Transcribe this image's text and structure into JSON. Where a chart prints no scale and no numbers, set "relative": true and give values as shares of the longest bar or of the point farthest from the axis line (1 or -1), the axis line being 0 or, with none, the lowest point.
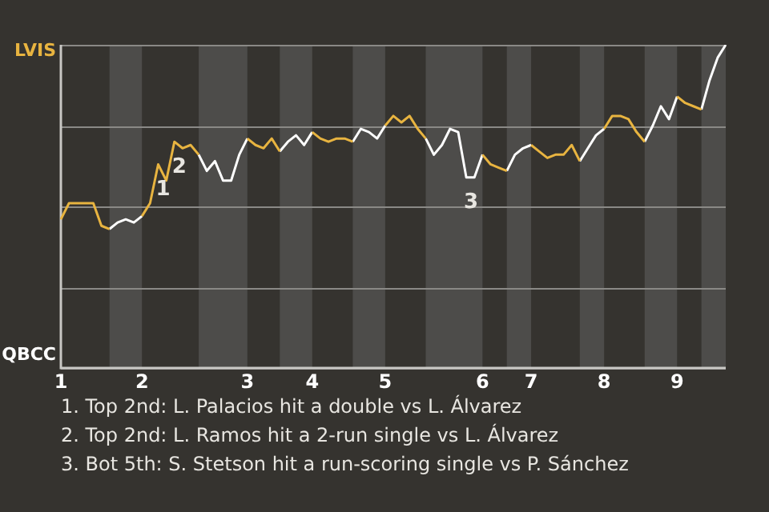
{
  "chart_data": {
    "type": "line",
    "relative": true,
    "categories": [
      "1",
      null,
      null,
      null,
      null,
      null,
      null,
      null,
      null,
      null,
      "2",
      null,
      null,
      null,
      null,
      null,
      null,
      null,
      null,
      null,
      null,
      null,
      null,
      "3",
      null,
      null,
      null,
      null,
      null,
      null,
      null,
      "4",
      null,
      null,
      null,
      null,
      null,
      null,
      null,
      null,
      "5",
      null,
      null,
      null,
      null,
      null,
      null,
      null,
      null,
      null,
      null,
      null,
      "6",
      null,
      null,
      null,
      null,
      null,
      "7",
      null,
      null,
      null,
      null,
      null,
      null,
      null,
      null,
      "8",
      null,
      null,
      null,
      null,
      null,
      null,
      null,
      null,
      "9",
      null,
      null,
      null,
      null,
      null,
      null
    ],
    "grid": "y",
    "legend": false,
    "marker": "none",
    "line_style": "solid",
    "series": [
      {
        "color": "#e8b440",
        "values": [
          0.46,
          0.51,
          0.51,
          0.51,
          0.51,
          0.44,
          0.43,
          null,
          null,
          null,
          0.47,
          0.51,
          0.63,
          0.58,
          0.7,
          0.68,
          0.69,
          0.66,
          null,
          null,
          null,
          null,
          null,
          0.71,
          0.69,
          0.68,
          0.71,
          0.67,
          null,
          null,
          null,
          0.73,
          0.71,
          0.7,
          0.71,
          0.71,
          0.7,
          null,
          null,
          null,
          0.75,
          0.78,
          0.76,
          0.78,
          0.74,
          0.71,
          null,
          null,
          null,
          null,
          null,
          null,
          0.66,
          0.63,
          0.62,
          0.61,
          null,
          null,
          0.69,
          0.67,
          0.65,
          0.66,
          0.66,
          0.69,
          0.64,
          null,
          null,
          0.74,
          0.78,
          0.78,
          0.77,
          0.73,
          0.7,
          null,
          null,
          null,
          0.84,
          0.82,
          0.81,
          0.8,
          null,
          null,
          null
        ]
      },
      {
        "color": "#ffffff",
        "values": [
          null,
          null,
          null,
          null,
          null,
          null,
          0.43,
          0.45,
          0.46,
          0.45,
          0.47,
          null,
          null,
          null,
          null,
          null,
          null,
          0.66,
          0.61,
          0.64,
          0.58,
          0.58,
          0.66,
          0.71,
          null,
          null,
          null,
          0.67,
          0.7,
          0.72,
          0.69,
          0.73,
          null,
          null,
          null,
          null,
          0.7,
          0.74,
          0.73,
          0.71,
          0.75,
          null,
          null,
          null,
          null,
          0.71,
          0.66,
          0.69,
          0.74,
          0.73,
          0.59,
          0.59,
          0.66,
          null,
          null,
          0.61,
          0.66,
          0.68,
          0.69,
          null,
          null,
          null,
          null,
          null,
          0.64,
          0.68,
          0.72,
          0.74,
          null,
          null,
          null,
          null,
          0.7,
          0.75,
          0.81,
          0.77,
          0.84,
          null,
          null,
          0.8,
          0.89,
          0.96,
          1.0
        ]
      }
    ],
    "annotations": [
      "LVIS",
      "QBCC",
      {
        "text": "1",
        "y": 0.63
      },
      {
        "text": "2",
        "y": 0.7
      },
      {
        "text": "3",
        "y": 0.59
      },
      "1. Top 2nd: L. Palacios hit a double vs L. Álvarez",
      "2. Top 2nd: L. Ramos hit a 2-run single vs L. Álvarez",
      "3. Bot 5th: S. Stetson hit a run-scoring single vs P. Sánchez"
    ]
  }
}
